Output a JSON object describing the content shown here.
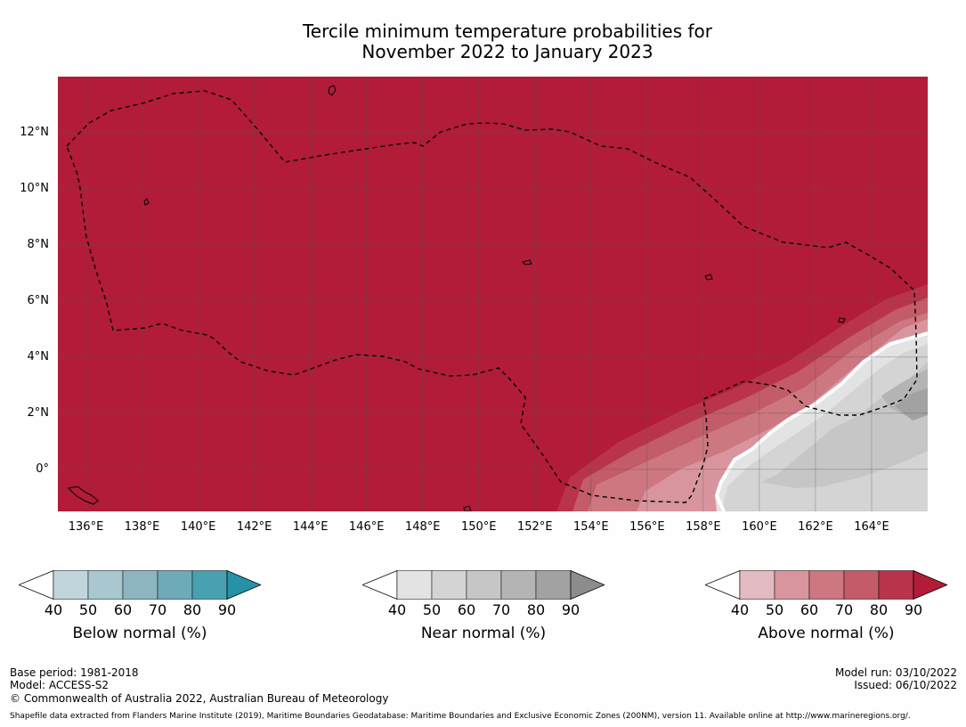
{
  "title": {
    "line1": "Tercile minimum temperature probabilities for",
    "line2": "November 2022 to January 2023"
  },
  "map": {
    "lat_labels": [
      "12°N",
      "10°N",
      "8°N",
      "6°N",
      "4°N",
      "2°N",
      "0°"
    ],
    "lon_labels": [
      "136°E",
      "138°E",
      "140°E",
      "142°E",
      "144°E",
      "146°E",
      "148°E",
      "150°E",
      "152°E",
      "154°E",
      "156°E",
      "158°E",
      "160°E",
      "162°E",
      "164°E"
    ],
    "extent": {
      "lon_min": 135,
      "lon_max": 166,
      "lat_min": -1.5,
      "lat_max": 14
    },
    "dominant_category": "Above normal",
    "dominant_probability": "90+",
    "colors": {
      "above": [
        "#e2bac2",
        "#d8959e",
        "#cd7780",
        "#c35b68",
        "#b9344b",
        "#b21c39"
      ],
      "near": [
        "#e3e3e3",
        "#d4d4d4",
        "#c6c6c6",
        "#b4b4b4",
        "#a2a2a2",
        "#8c8c8c"
      ],
      "below": [
        "#c0d6dc",
        "#a8c7cf",
        "#8db5c1",
        "#6eaab7",
        "#48a1b1",
        "#2791a6"
      ],
      "boundary": "#ffffff"
    }
  },
  "colorbars": [
    {
      "id": "below",
      "label": "Below normal (%)",
      "ticks": [
        "40",
        "50",
        "60",
        "70",
        "80",
        "90"
      ],
      "colors": [
        "#ffffff",
        "#c0d6dc",
        "#a8c7cf",
        "#8db5c1",
        "#6eaab7",
        "#48a1b1",
        "#2791a6"
      ]
    },
    {
      "id": "near",
      "label": "Near normal (%)",
      "ticks": [
        "40",
        "50",
        "60",
        "70",
        "80",
        "90"
      ],
      "colors": [
        "#ffffff",
        "#e3e3e3",
        "#d4d4d4",
        "#c6c6c6",
        "#b4b4b4",
        "#a2a2a2",
        "#8c8c8c"
      ]
    },
    {
      "id": "above",
      "label": "Above normal (%)",
      "ticks": [
        "40",
        "50",
        "60",
        "70",
        "80",
        "90"
      ],
      "colors": [
        "#ffffff",
        "#e2bac2",
        "#d8959e",
        "#cd7780",
        "#c35b68",
        "#b9344b",
        "#b21c39"
      ]
    }
  ],
  "footer": {
    "base_period": "Base period: 1981-2018",
    "model": "Model: ACCESS-S2",
    "copyright": "© Commonwealth of Australia 2022, Australian Bureau of Meteorology",
    "model_run": "Model run: 03/10/2022",
    "issued": "Issued: 06/10/2022",
    "shapefile": "Shapefile data extracted from Flanders Marine Institute (2019), Maritime Boundaries Geodatabase: Maritime Boundaries and Exclusive Economic Zones (200NM), version 11. Available online at http://www.marineregions.org/."
  }
}
